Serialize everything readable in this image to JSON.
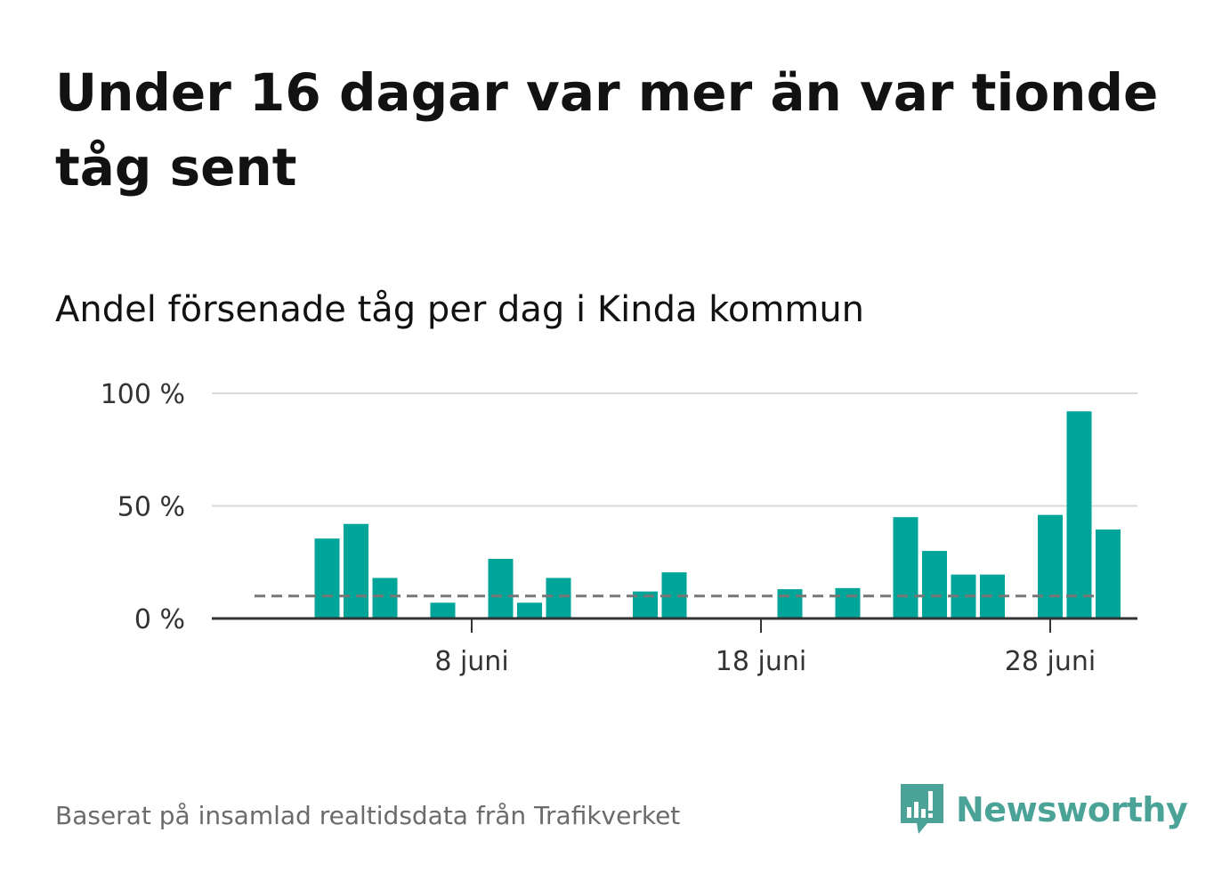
{
  "title": "Under 16 dagar var mer än var tionde tåg sent",
  "subtitle": "Andel försenade tåg per dag i Kinda kommun",
  "source": "Baserat på insamlad realtidsdata från Trafikverket",
  "brand": {
    "name": "Newsworthy",
    "icon": "newsworthy-logo-icon",
    "color": "#4aa396"
  },
  "colors": {
    "bar": "#00a599",
    "grid": "#d9d9d9",
    "axis": "#333333",
    "reference": "#777777"
  },
  "chart_data": {
    "type": "bar",
    "x_unit": "day of June",
    "x": [
      1,
      2,
      3,
      4,
      5,
      6,
      7,
      8,
      9,
      10,
      11,
      12,
      13,
      14,
      15,
      16,
      17,
      18,
      19,
      20,
      21,
      22,
      23,
      24,
      25,
      26,
      27,
      28,
      29,
      30
    ],
    "values": [
      0,
      0,
      35.5,
      42,
      18,
      0,
      7,
      0,
      26.5,
      7,
      18,
      0,
      0,
      12,
      20.5,
      0,
      0,
      0,
      13,
      0,
      13.5,
      0,
      45,
      30,
      19.5,
      19.5,
      0,
      46,
      92,
      39.5
    ],
    "reference_line": 10,
    "ylim": [
      0,
      100
    ],
    "yticks": [
      {
        "value": 0,
        "label": "0 %"
      },
      {
        "value": 50,
        "label": "50 %"
      },
      {
        "value": 100,
        "label": "100 %"
      }
    ],
    "xticks": [
      {
        "day": 8,
        "label": "8 juni"
      },
      {
        "day": 18,
        "label": "18 juni"
      },
      {
        "day": 28,
        "label": "28 juni"
      }
    ],
    "grid": true,
    "legend": "none"
  }
}
